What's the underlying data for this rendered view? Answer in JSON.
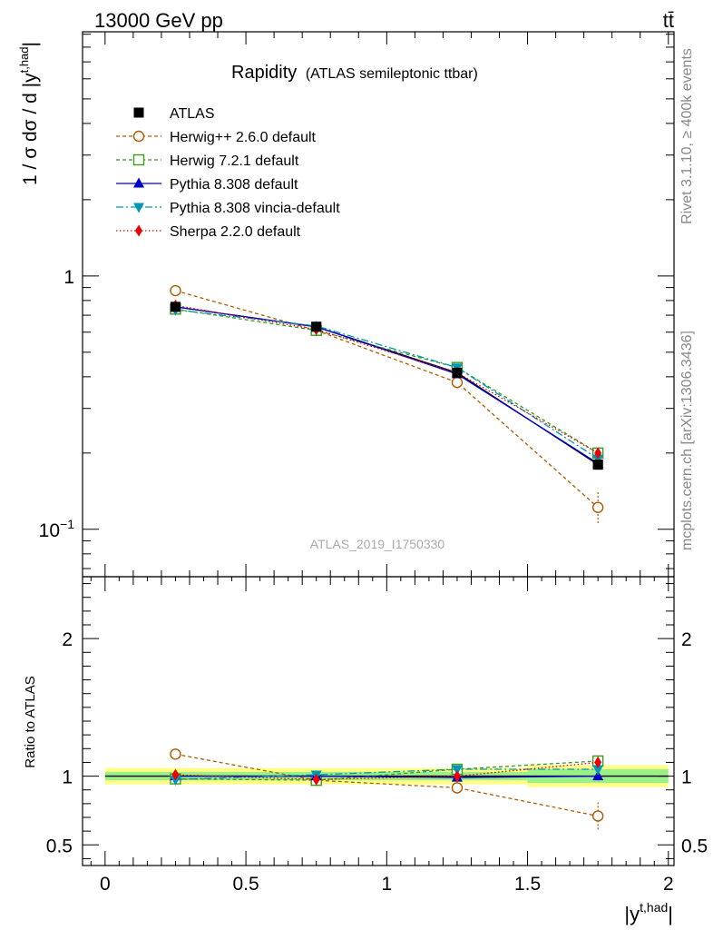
{
  "header": {
    "left": "13000 GeV pp",
    "right": "tt̄"
  },
  "side_labels": {
    "upper": "Rivet 3.1.10, ≥ 400k events",
    "lower": "mcplots.cern.ch [arXiv:1306.3436]"
  },
  "colors": {
    "ATLAS": "#000000",
    "Herwig++ 2.6.0 default": "#b05a00",
    "Herwig 7.2.1 default": "#3c9b1e",
    "Pythia 8.308 default": "#0000cc",
    "Pythia 8.308 vincia-default": "#0096b4",
    "Sherpa 2.2.0 default": "#ee0000",
    "band_outer": "#ffff88",
    "band_inner": "#88ee88"
  },
  "chart_data": [
    {
      "type": "line",
      "title": "Rapidity",
      "subtitle": "(ATLAS semileptonic ttbar)",
      "watermark": "ATLAS_2019_I1750330",
      "ylabel": "1 / σ dσ / d |y",
      "ylabel_sup": "t,had",
      "ylabel_end": "|",
      "yscale": "log",
      "ylim": [
        0.065,
        9.2
      ],
      "xlim": [
        -0.08,
        2.02
      ],
      "yticks": [
        {
          "value": 0.1,
          "label": "10",
          "sup": "−1"
        },
        {
          "value": 1,
          "label": "1",
          "sup": ""
        }
      ],
      "x": [
        0.25,
        0.75,
        1.25,
        1.75
      ],
      "legend_position": "top-left",
      "series": [
        {
          "name": "ATLAS",
          "values": [
            0.755,
            0.63,
            0.415,
            0.18
          ],
          "errors": [
            0.012,
            0.01,
            0.008,
            0.006
          ],
          "marker": "square",
          "dash": "none"
        },
        {
          "name": "Herwig++ 2.6.0 default",
          "values": [
            0.875,
            0.61,
            0.38,
            0.122
          ],
          "errors": [
            0.03,
            0.02,
            0.025,
            0.018
          ],
          "marker": "circle-open",
          "dash": "4,3"
        },
        {
          "name": "Herwig 7.2.1 default",
          "values": [
            0.74,
            0.61,
            0.435,
            0.2
          ],
          "errors": [
            0.012,
            0.01,
            0.01,
            0.008
          ],
          "marker": "square-open",
          "dash": "4,3"
        },
        {
          "name": "Pythia 8.308 default",
          "values": [
            0.755,
            0.63,
            0.41,
            0.182
          ],
          "errors": [
            0.008,
            0.007,
            0.006,
            0.005
          ],
          "marker": "triangle-up",
          "dash": "none"
        },
        {
          "name": "Pythia 8.308 vincia-default",
          "values": [
            0.735,
            0.635,
            0.435,
            0.19
          ],
          "errors": [
            0.008,
            0.007,
            0.006,
            0.005
          ],
          "marker": "triangle-down",
          "dash": "8,3,2,3"
        },
        {
          "name": "Sherpa 2.2.0 default",
          "values": [
            0.765,
            0.615,
            0.415,
            0.2
          ],
          "errors": [
            0.01,
            0.009,
            0.008,
            0.007
          ],
          "marker": "diamond",
          "dash": "1.5,2.5"
        }
      ]
    },
    {
      "type": "line",
      "ylabel": "Ratio to ATLAS",
      "xlabel": "|y",
      "xlabel_sup": "t,had",
      "xlabel_end": "|",
      "ylim": [
        0.35,
        2.45
      ],
      "xlim": [
        -0.08,
        2.02
      ],
      "yticks": [
        {
          "value": 0.5,
          "label": "0.5"
        },
        {
          "value": 1,
          "label": "1"
        },
        {
          "value": 2,
          "label": "2"
        }
      ],
      "xticks": [
        {
          "value": 0,
          "label": "0"
        },
        {
          "value": 0.5,
          "label": "0.5"
        },
        {
          "value": 1,
          "label": "1"
        },
        {
          "value": 1.5,
          "label": "1.5"
        },
        {
          "value": 2,
          "label": "2"
        }
      ],
      "x": [
        0.25,
        0.75,
        1.25,
        1.75
      ],
      "band": {
        "x_edges": [
          0,
          0.5,
          1,
          1.5,
          2
        ],
        "outer": [
          0.06,
          0.06,
          0.06,
          0.08
        ],
        "inner": [
          0.03,
          0.03,
          0.03,
          0.05
        ]
      },
      "series": [
        {
          "name": "Herwig++ 2.6.0 default",
          "values": [
            1.16,
            0.97,
            0.915,
            0.71
          ],
          "errors": [
            0.04,
            0.03,
            0.05,
            0.1
          ]
        },
        {
          "name": "Herwig 7.2.1 default",
          "values": [
            0.98,
            0.97,
            1.05,
            1.11
          ],
          "errors": [
            0.02,
            0.02,
            0.02,
            0.04
          ]
        },
        {
          "name": "Pythia 8.308 default",
          "values": [
            1.0,
            1.0,
            0.99,
            1.0
          ],
          "errors": [
            0.015,
            0.015,
            0.015,
            0.03
          ]
        },
        {
          "name": "Pythia 8.308 vincia-default",
          "values": [
            0.975,
            1.01,
            1.05,
            1.05
          ],
          "errors": [
            0.015,
            0.015,
            0.015,
            0.03
          ]
        },
        {
          "name": "Sherpa 2.2.0 default",
          "values": [
            1.01,
            0.975,
            1.0,
            1.1
          ],
          "errors": [
            0.02,
            0.02,
            0.02,
            0.04
          ]
        }
      ]
    }
  ]
}
